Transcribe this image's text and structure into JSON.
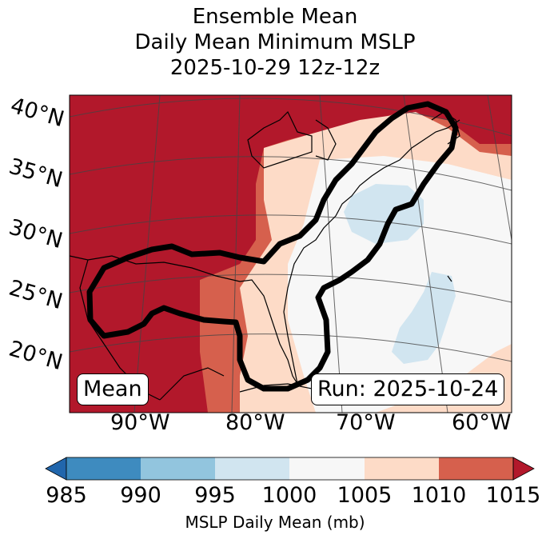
{
  "title": {
    "line1": "Ensemble Mean",
    "line2": "Daily Mean Minimum MSLP",
    "line3": "2025-10-29 12z-12z"
  },
  "map": {
    "lat_labels": [
      "40°N",
      "35°N",
      "30°N",
      "25°N",
      "20°N"
    ],
    "lon_labels": [
      "90°W",
      "80°W",
      "70°W",
      "60°W"
    ],
    "mean_badge": "Mean",
    "run_badge": "Run: 2025-10-24",
    "colors": {
      "c985_990": "#3e8bbf",
      "c990_995": "#92c5de",
      "c995_1000": "#d1e5f0",
      "c1000_1005": "#f7f7f7",
      "c1005_1010": "#fddbc7",
      "c1010_1015": "#d6604d",
      "c1015_plus": "#b2182b",
      "land_outline": "#000000",
      "grid": "#444444",
      "contour": "#000000"
    }
  },
  "colorbar": {
    "ticks": [
      "985",
      "990",
      "995",
      "1000",
      "1005",
      "1010",
      "1015"
    ],
    "label": "MSLP Daily Mean (mb)"
  }
}
